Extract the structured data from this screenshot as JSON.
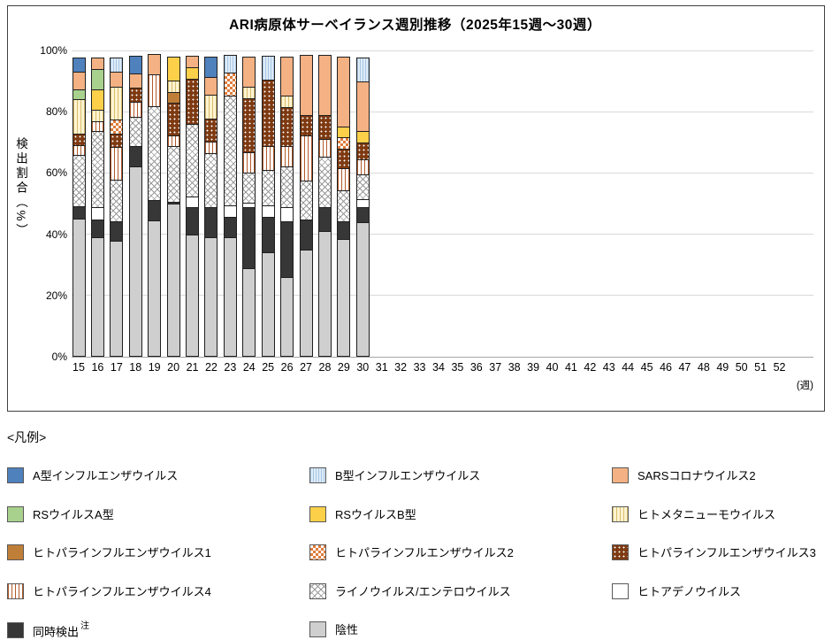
{
  "title": "ARI病原体サーベイランス週別推移（2025年15週～30週）",
  "legend_header": "<凡例>",
  "y_axis": {
    "title": "検出割合（%）",
    "ticks": [
      "0%",
      "20%",
      "40%",
      "60%",
      "80%",
      "100%"
    ]
  },
  "x_axis": {
    "unit": "(週)",
    "first_week": 15,
    "last_week": 52
  },
  "note_mark": "注",
  "chart_data": {
    "type": "bar",
    "stacked": true,
    "unit": "percent",
    "ylim": [
      0,
      100
    ],
    "grid": true,
    "categories": [
      15,
      16,
      17,
      18,
      19,
      20,
      21,
      22,
      23,
      24,
      25,
      26,
      27,
      28,
      29,
      30
    ],
    "series": [
      {
        "name": "A型インフルエンザウイルス",
        "pattern": "flua",
        "color": "#4f81bd",
        "values": [
          5,
          0,
          0,
          6,
          0,
          0,
          0,
          7,
          0,
          0,
          0,
          0,
          0,
          0,
          0,
          0
        ]
      },
      {
        "name": "B型インフルエンザウイルス",
        "pattern": "flub",
        "color": "#ddebf7",
        "values": [
          0,
          0,
          5,
          0,
          0,
          0,
          0,
          0,
          6,
          0,
          8,
          0,
          0,
          0,
          0,
          8
        ]
      },
      {
        "name": "SARSコロナウイルス2",
        "pattern": "sars",
        "color": "#f4b183",
        "values": [
          6,
          4,
          5,
          5,
          7,
          0,
          4,
          6,
          0,
          10,
          0,
          13,
          20,
          20,
          23,
          16.5
        ]
      },
      {
        "name": "RSウイルスA型",
        "pattern": "rsva",
        "color": "#a9d18e",
        "values": [
          3.5,
          7,
          0,
          0,
          0,
          0,
          0,
          0,
          0,
          0,
          0,
          0,
          0,
          0,
          0,
          0
        ]
      },
      {
        "name": "RSウイルスB型",
        "pattern": "rsvb",
        "color": "#fdd04a",
        "values": [
          0,
          7,
          0,
          0,
          0,
          8,
          4,
          0,
          0,
          0,
          0,
          0,
          0,
          0,
          4,
          4
        ]
      },
      {
        "name": "ヒトメタニューモウイルス",
        "pattern": "hmpv",
        "color": "#fdf3d0",
        "values": [
          11.5,
          4,
          11,
          0,
          0,
          4,
          0,
          8,
          0,
          4,
          0,
          4,
          0,
          0,
          0,
          0
        ]
      },
      {
        "name": "ヒトパラインフルエンザウイルス1",
        "pattern": "piv1",
        "color": "#c07f38",
        "values": [
          0,
          0,
          0,
          0,
          0,
          4,
          0,
          0,
          0,
          0,
          0,
          0,
          0,
          0,
          0,
          0
        ]
      },
      {
        "name": "ヒトパラインフルエンザウイルス2",
        "pattern": "piv2",
        "color": "#e07b39",
        "values": [
          0,
          0,
          5,
          0,
          0,
          0,
          0,
          0,
          8,
          0,
          0,
          0,
          0,
          0,
          4,
          0
        ]
      },
      {
        "name": "ヒトパラインフルエンザウイルス3",
        "pattern": "piv3",
        "color": "#7e3a12",
        "values": [
          4,
          0,
          4.5,
          5,
          0,
          11,
          15,
          8,
          0,
          18,
          22,
          13,
          7,
          8,
          6.5,
          6
        ]
      },
      {
        "name": "ヒトパラインフルエンザウイルス4",
        "pattern": "piv4",
        "color": "#b35b2a",
        "values": [
          3.5,
          3.5,
          11,
          5,
          10.5,
          3.5,
          0,
          4,
          0,
          7,
          8,
          7,
          15,
          6,
          7.5,
          5
        ]
      },
      {
        "name": "ライノウイルス/エンテロウイルス",
        "pattern": "rhino",
        "color": "#9a9a9a",
        "values": [
          17,
          25,
          14,
          10,
          31,
          18.5,
          24,
          18,
          36,
          10,
          12,
          13.5,
          13,
          17,
          10.5,
          8.5
        ]
      },
      {
        "name": "ヒトアデノウイルス",
        "pattern": "adeno",
        "color": "#ffffff",
        "values": [
          0,
          4.5,
          0,
          0,
          0,
          0,
          4,
          0,
          4,
          2,
          4,
          5,
          0,
          0,
          0,
          3
        ]
      },
      {
        "name": "同時検出",
        "pattern": "multi",
        "color": "#373737",
        "note": "注",
        "values": [
          4.5,
          6,
          6.5,
          7,
          7,
          1,
          9,
          10,
          7,
          20,
          12,
          18.5,
          10,
          8,
          6,
          5
        ]
      },
      {
        "name": "陰性",
        "pattern": "neg",
        "color": "#cfcfcf",
        "values": [
          45,
          39,
          38,
          62,
          44.5,
          50,
          40,
          39,
          39,
          29,
          34,
          26,
          35,
          41,
          38.5,
          44
        ]
      }
    ]
  }
}
